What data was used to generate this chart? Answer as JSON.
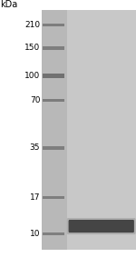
{
  "kda_label": "kDa",
  "ladder_labels": [
    "210",
    "150",
    "100",
    "70",
    "35",
    "17",
    "10"
  ],
  "ladder_positions": [
    210,
    150,
    100,
    70,
    35,
    17,
    10
  ],
  "band_color": "#3a3a3a",
  "ladder_band_color": "#686868",
  "fig_width": 1.5,
  "fig_height": 2.83,
  "gel_bg_ladder": "#b8b8b8",
  "gel_bg_sample": "#c8c8c8",
  "outer_bg": "#d8d8d8",
  "label_fontsize": 6.5,
  "kda_fontsize": 7.0
}
